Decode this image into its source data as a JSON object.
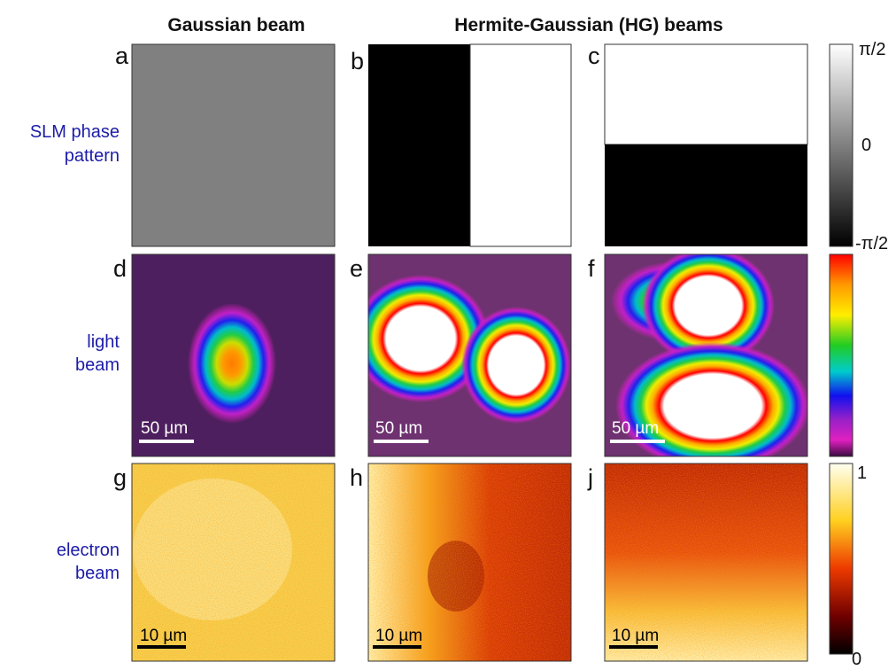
{
  "headers": [
    "Gaussian beam",
    "Hermite-Gaussian (HG) beams"
  ],
  "rows": [
    {
      "label": [
        "SLM phase",
        "pattern"
      ],
      "letters": [
        "a",
        "b",
        "c"
      ],
      "colorbar_labels": [
        "π/2",
        "0",
        "-π/2"
      ]
    },
    {
      "label": [
        "light",
        "beam"
      ],
      "letters": [
        "d",
        "e",
        "f"
      ],
      "scale_bar": "50 µm"
    },
    {
      "label": [
        "electron",
        "beam"
      ],
      "letters": [
        "g",
        "h",
        "j"
      ],
      "scale_bar": "10 µm",
      "colorbar_labels": [
        "1",
        "0"
      ]
    }
  ]
}
